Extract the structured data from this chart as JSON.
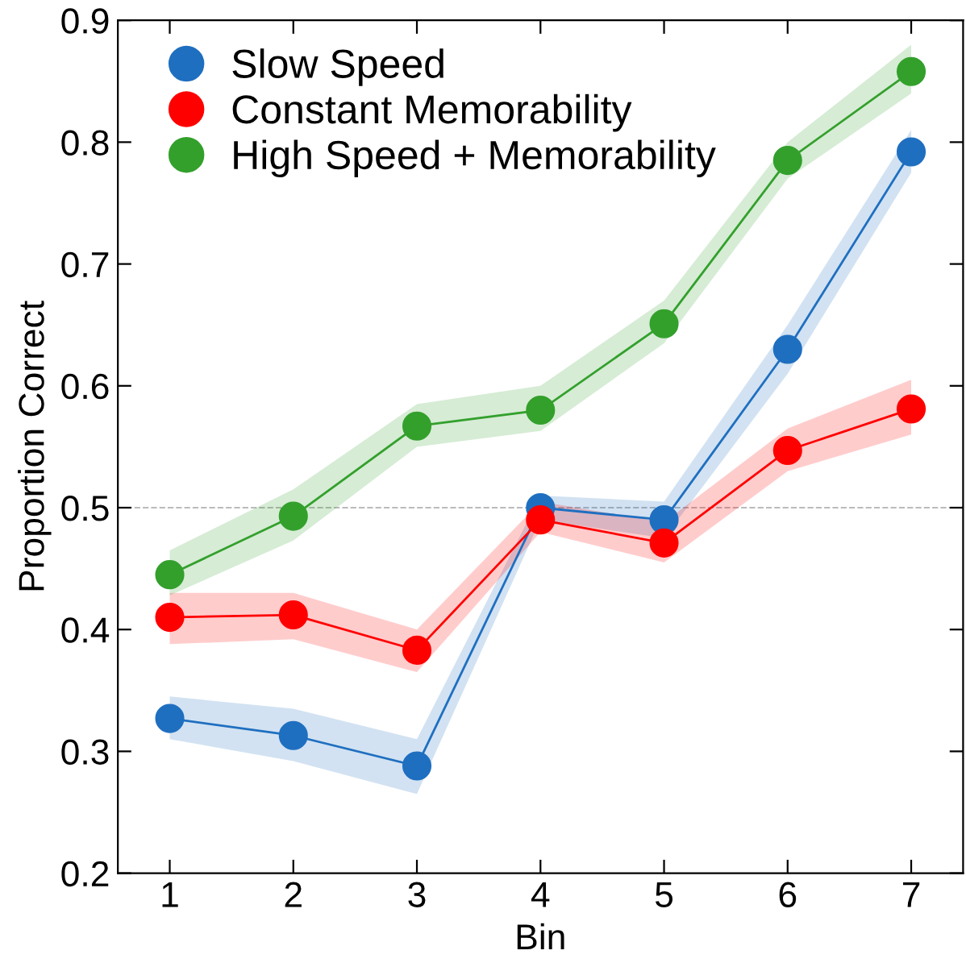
{
  "chart_data": {
    "type": "line",
    "xlabel": "Bin",
    "ylabel": "Proportion Correct",
    "x": [
      1,
      2,
      3,
      4,
      5,
      6,
      7
    ],
    "series": [
      {
        "name": "Slow Speed",
        "color": "#1f6fc0",
        "values": [
          0.327,
          0.313,
          0.288,
          0.5,
          0.49,
          0.63,
          0.792
        ],
        "lower": [
          0.31,
          0.292,
          0.265,
          0.49,
          0.475,
          0.61,
          0.775
        ],
        "upper": [
          0.345,
          0.335,
          0.31,
          0.51,
          0.505,
          0.65,
          0.81
        ]
      },
      {
        "name": "Constant Memorability",
        "color": "#ff0000",
        "values": [
          0.41,
          0.412,
          0.383,
          0.49,
          0.471,
          0.547,
          0.581
        ],
        "lower": [
          0.388,
          0.392,
          0.365,
          0.48,
          0.455,
          0.53,
          0.56
        ],
        "upper": [
          0.43,
          0.43,
          0.4,
          0.505,
          0.488,
          0.565,
          0.605
        ]
      },
      {
        "name": "High Speed + Memorability",
        "color": "#33a02c",
        "values": [
          0.445,
          0.493,
          0.567,
          0.58,
          0.651,
          0.785,
          0.858
        ],
        "lower": [
          0.428,
          0.473,
          0.55,
          0.563,
          0.635,
          0.77,
          0.84
        ],
        "upper": [
          0.465,
          0.515,
          0.585,
          0.6,
          0.67,
          0.8,
          0.88
        ]
      }
    ],
    "xlim": [
      0.58,
      7.42
    ],
    "xticks": [
      1,
      2,
      3,
      4,
      5,
      6,
      7
    ],
    "ylim": [
      0.2,
      0.9
    ],
    "yticks": [
      0.2,
      0.3,
      0.4,
      0.5,
      0.6,
      0.7,
      0.8,
      0.9
    ],
    "ref_lines": [
      {
        "axis": "y",
        "value": 0.5,
        "label": null,
        "color": "#bbbbbb",
        "line_style": "dashed"
      }
    ],
    "marker": "circle",
    "line_style": "solid",
    "grid": false,
    "legend": "top left"
  }
}
